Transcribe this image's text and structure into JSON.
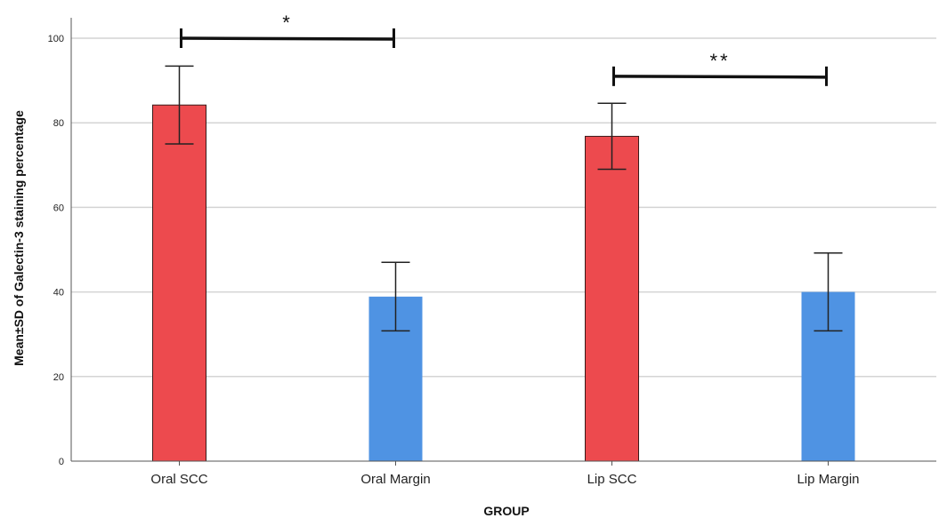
{
  "chart_data": {
    "type": "bar",
    "xlabel": "GROUP",
    "ylabel": "Mean±SD of Galectin-3 staining percentage",
    "ylim": [
      0,
      105
    ],
    "yticks": [
      0,
      20,
      40,
      60,
      80,
      100
    ],
    "grid": true,
    "categories": [
      "Oral SCC",
      "Oral Margin",
      "Lip SCC",
      "Lip Margin"
    ],
    "values": [
      84.2,
      38.9,
      76.8,
      40.0
    ],
    "error_low": [
      75.0,
      30.8,
      69.0,
      30.8
    ],
    "error_high": [
      93.4,
      47.0,
      84.6,
      49.2
    ],
    "colors": [
      "#ed4a4e",
      "#4f93e3",
      "#ed4a4e",
      "#4f93e3"
    ],
    "significance": [
      {
        "from": 0,
        "to": 1,
        "y": 100,
        "label": "*"
      },
      {
        "from": 2,
        "to": 3,
        "y": 91,
        "label": "**"
      }
    ]
  }
}
